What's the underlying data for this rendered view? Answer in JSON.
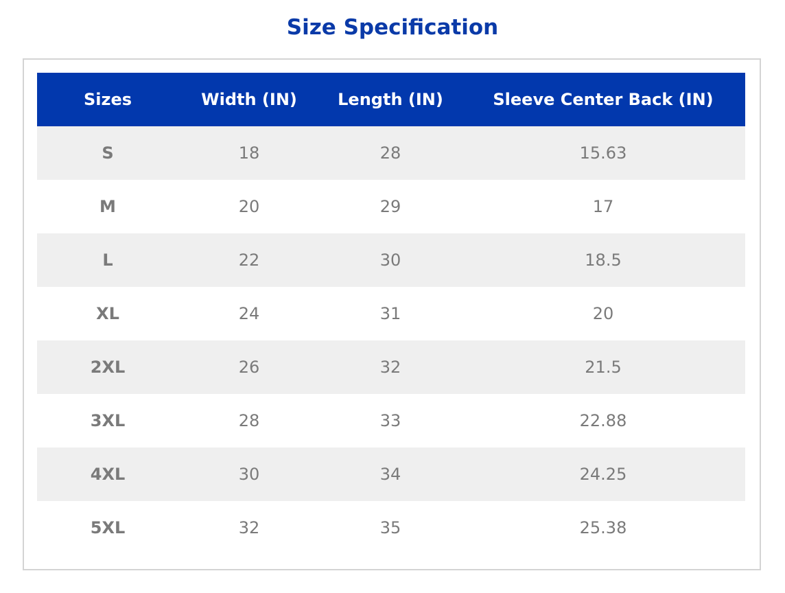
{
  "header": {
    "title": "Size Specification"
  },
  "table": {
    "columns": [
      "Sizes",
      "Width (IN)",
      "Length (IN)",
      "Sleeve Center Back (IN)"
    ],
    "rows": [
      [
        "S",
        "18",
        "28",
        "15.63"
      ],
      [
        "M",
        "20",
        "29",
        "17"
      ],
      [
        "L",
        "22",
        "30",
        "18.5"
      ],
      [
        "XL",
        "24",
        "31",
        "20"
      ],
      [
        "2XL",
        "26",
        "32",
        "21.5"
      ],
      [
        "3XL",
        "28",
        "33",
        "22.88"
      ],
      [
        "4XL",
        "30",
        "34",
        "24.25"
      ],
      [
        "5XL",
        "32",
        "35",
        "25.38"
      ]
    ]
  }
}
